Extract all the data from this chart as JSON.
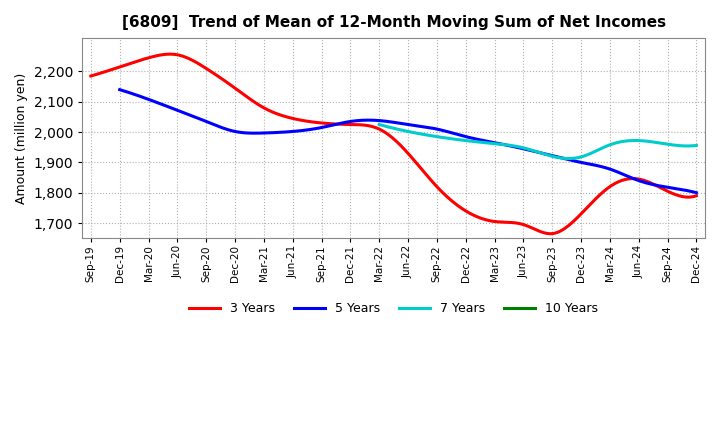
{
  "title": "[6809]  Trend of Mean of 12-Month Moving Sum of Net Incomes",
  "ylabel": "Amount (million yen)",
  "ylim": [
    1650,
    2310
  ],
  "yticks": [
    1700,
    1800,
    1900,
    2000,
    2100,
    2200
  ],
  "background_color": "#ffffff",
  "plot_bg_color": "#ffffff",
  "grid_color": "#aaaaaa",
  "x_labels": [
    "Sep-19",
    "Dec-19",
    "Mar-20",
    "Jun-20",
    "Sep-20",
    "Dec-20",
    "Mar-21",
    "Jun-21",
    "Sep-21",
    "Dec-21",
    "Mar-22",
    "Jun-22",
    "Sep-22",
    "Dec-22",
    "Mar-23",
    "Jun-23",
    "Sep-23",
    "Dec-23",
    "Mar-24",
    "Jun-24",
    "Sep-24",
    "Dec-24"
  ],
  "series": [
    {
      "name": "3 Years",
      "color": "#ff0000",
      "data": [
        2185,
        2215,
        2245,
        2255,
        2210,
        2145,
        2080,
        2045,
        2030,
        2025,
        2010,
        1930,
        1820,
        1740,
        1705,
        1695,
        1665,
        1730,
        1820,
        1845,
        1805,
        1790
      ]
    },
    {
      "name": "5 Years",
      "color": "#0000ff",
      "data": [
        null,
        2140,
        2108,
        2072,
        2035,
        2002,
        1997,
        2002,
        2015,
        2035,
        2038,
        2025,
        2010,
        1985,
        1965,
        1945,
        1922,
        1900,
        1878,
        1840,
        1818,
        1800
      ]
    },
    {
      "name": "7 Years",
      "color": "#00cccc",
      "data": [
        null,
        null,
        null,
        null,
        null,
        null,
        null,
        null,
        null,
        null,
        2025,
        2002,
        1985,
        1972,
        1962,
        1948,
        1920,
        1918,
        1958,
        1972,
        1960,
        1956
      ]
    },
    {
      "name": "10 Years",
      "color": "#008000",
      "data": [
        null,
        null,
        null,
        null,
        null,
        null,
        null,
        null,
        null,
        null,
        null,
        null,
        null,
        null,
        null,
        null,
        null,
        null,
        null,
        null,
        null,
        null
      ]
    }
  ],
  "legend_labels": [
    "3 Years",
    "5 Years",
    "7 Years",
    "10 Years"
  ],
  "legend_colors": [
    "#ff0000",
    "#0000ff",
    "#00cccc",
    "#008000"
  ]
}
